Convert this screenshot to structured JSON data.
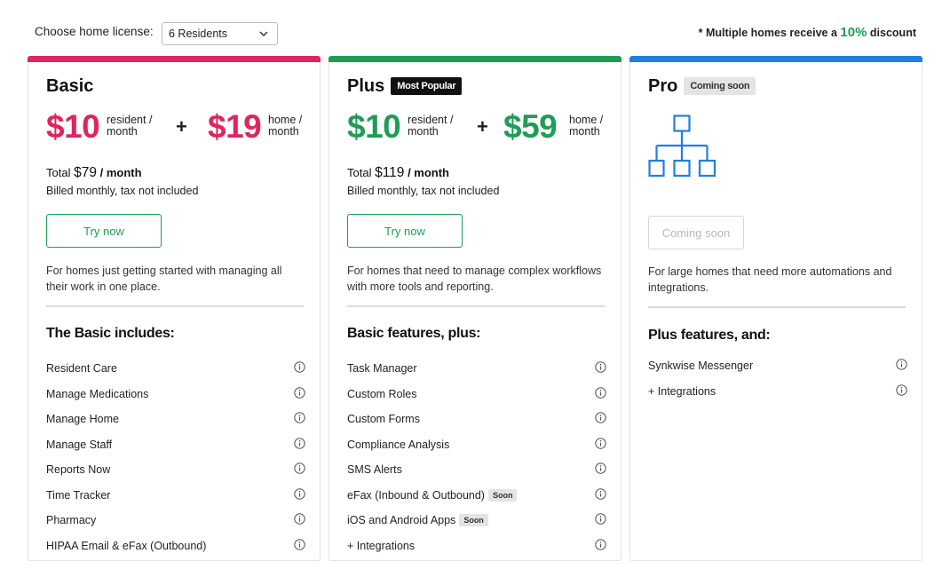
{
  "header": {
    "license_label": "Choose home license:",
    "license_value": "6 Residents",
    "discount_prefix": "* Multiple homes receive a ",
    "discount_pct": "10%",
    "discount_suffix": " discount"
  },
  "colors": {
    "basic": "#e0245e",
    "plus": "#1f9d55",
    "pro": "#1f7fe0"
  },
  "plans": [
    {
      "name": "Basic",
      "resident_price": "$10",
      "resident_unit_1": "resident /",
      "resident_unit_2": "month",
      "plus_sign": "+",
      "home_price": "$19",
      "home_unit_1": "home /",
      "home_unit_2": "month",
      "total_label": "Total",
      "total_value": "$79",
      "total_unit": "/ month",
      "billed": "Billed monthly, tax not included",
      "button": "Try now",
      "description": "For homes just getting started with managing all their work in one place.",
      "section_title": "The Basic includes:",
      "features": [
        {
          "text": "Resident Care",
          "badge": ""
        },
        {
          "text": "Manage Medications",
          "badge": ""
        },
        {
          "text": "Manage Home",
          "badge": ""
        },
        {
          "text": "Manage Staff",
          "badge": ""
        },
        {
          "text": "Reports Now",
          "badge": ""
        },
        {
          "text": "Time Tracker",
          "badge": ""
        },
        {
          "text": "Pharmacy",
          "badge": ""
        },
        {
          "text": "HIPAA Email & eFax (Outbound)",
          "badge": ""
        }
      ]
    },
    {
      "name": "Plus",
      "badge": "Most Popular",
      "resident_price": "$10",
      "resident_unit_1": "resident /",
      "resident_unit_2": "month",
      "plus_sign": "+",
      "home_price": "$59",
      "home_unit_1": "home /",
      "home_unit_2": "month",
      "total_label": "Total",
      "total_value": "$119",
      "total_unit": "/ month",
      "billed": "Billed monthly, tax not included",
      "button": "Try now",
      "description": "For homes that need to manage complex workflows with more tools and reporting.",
      "section_title": "Basic features, plus:",
      "features": [
        {
          "text": "Task Manager",
          "badge": ""
        },
        {
          "text": "Custom Roles",
          "badge": ""
        },
        {
          "text": "Custom Forms",
          "badge": ""
        },
        {
          "text": "Compliance Analysis",
          "badge": ""
        },
        {
          "text": "SMS Alerts",
          "badge": ""
        },
        {
          "text": "eFax (Inbound & Outbound)",
          "badge": "Soon"
        },
        {
          "text": "iOS and Android Apps",
          "badge": "Soon"
        },
        {
          "text": "+ Integrations",
          "badge": ""
        }
      ]
    },
    {
      "name": "Pro",
      "badge": "Coming soon",
      "icon": "org-chart-icon",
      "button": "Coming soon",
      "description": "For large homes that need more automations and integrations.",
      "section_title": "Plus features, and:",
      "features": [
        {
          "text": "Synkwise Messenger",
          "badge": ""
        },
        {
          "text": "+ Integrations",
          "badge": ""
        }
      ]
    }
  ]
}
